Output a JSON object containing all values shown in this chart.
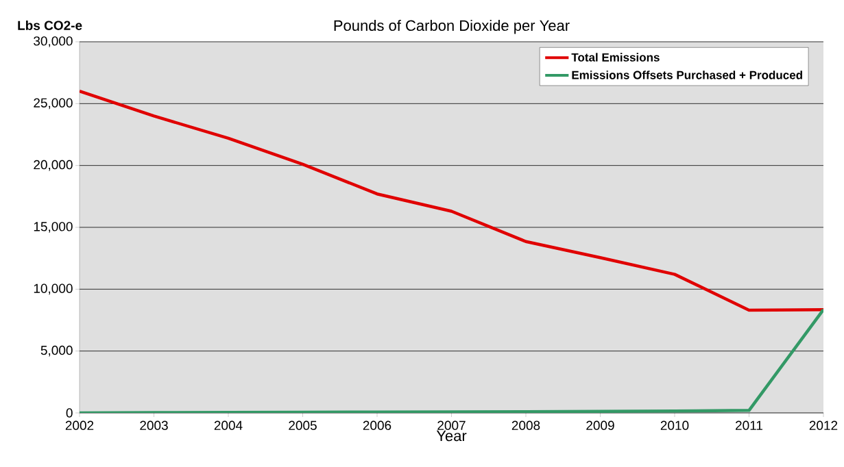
{
  "chart_data": {
    "type": "line",
    "title": "Pounds of Carbon Dioxide per Year",
    "xlabel": "Year",
    "ylabel": "Lbs CO2-e",
    "x": [
      2002,
      2003,
      2004,
      2005,
      2006,
      2007,
      2008,
      2009,
      2010,
      2011,
      2012
    ],
    "series": [
      {
        "name": "Total Emissions",
        "color": "#e00000",
        "values": [
          26000,
          24000,
          22200,
          20100,
          17700,
          16300,
          13850,
          12550,
          11200,
          8300,
          8350
        ]
      },
      {
        "name": "Emissions Offsets Purchased + Produced",
        "color": "#339966",
        "values": [
          0,
          30,
          40,
          50,
          70,
          80,
          100,
          130,
          150,
          200,
          8350
        ]
      }
    ],
    "xlim": [
      2002,
      2012
    ],
    "xticks": [
      2002,
      2003,
      2004,
      2005,
      2006,
      2007,
      2008,
      2009,
      2010,
      2011,
      2012
    ],
    "ylim": [
      0,
      30000
    ],
    "yticks": [
      {
        "value": 0,
        "label": "0"
      },
      {
        "value": 5000,
        "label": "5,000"
      },
      {
        "value": 10000,
        "label": "10,000"
      },
      {
        "value": 15000,
        "label": "15,000"
      },
      {
        "value": 20000,
        "label": "20,000"
      },
      {
        "value": 25000,
        "label": "25,000"
      },
      {
        "value": 30000,
        "label": "30,000"
      }
    ],
    "grid": "y",
    "legend": "top right",
    "marker": "none",
    "line_style": "solid"
  }
}
